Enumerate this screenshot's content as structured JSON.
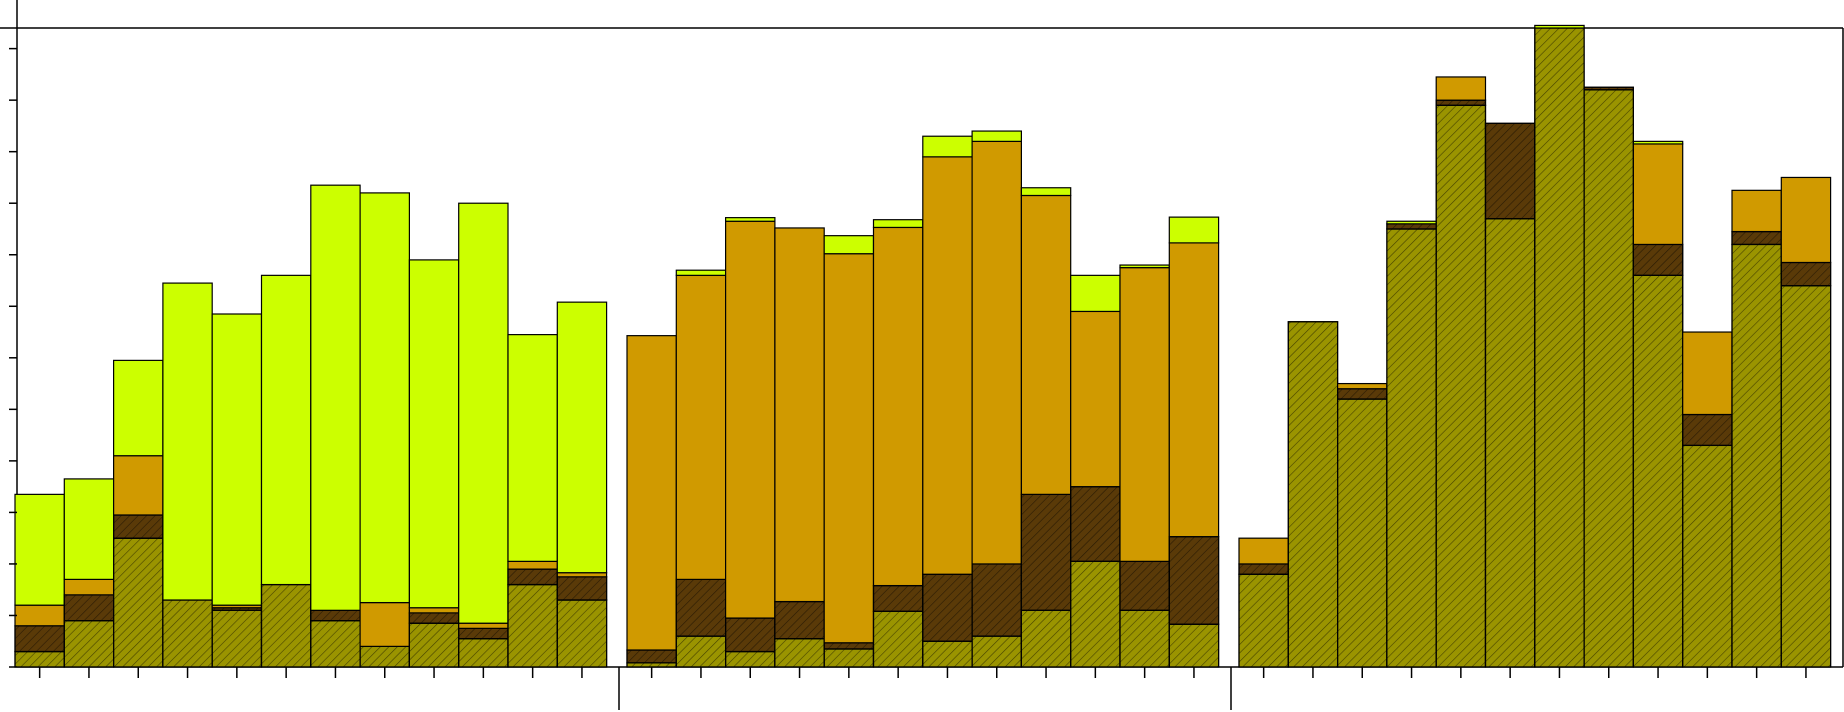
{
  "chart_data": {
    "type": "bar",
    "stacked": true,
    "title": "",
    "xlabel": "",
    "ylabel": "",
    "ylim": [
      0,
      12.4
    ],
    "grid": false,
    "legend": "none",
    "groups": [
      {
        "categories": 12
      },
      {
        "categories": 12
      },
      {
        "categories": 12
      }
    ],
    "series": [
      {
        "color": "#9a9400",
        "pattern": "hatch",
        "values": [
          0.3,
          0.9,
          2.5,
          1.3,
          1.1,
          1.6,
          0.9,
          0.4,
          0.85,
          0.55,
          1.6,
          1.3,
          0.08,
          0.6,
          0.3,
          0.55,
          0.35,
          1.08,
          0.5,
          0.6,
          1.1,
          2.05,
          1.1,
          0.83,
          1.8,
          6.7,
          5.2,
          8.5,
          10.9,
          8.7,
          12.4,
          11.2,
          7.6,
          4.3,
          8.2,
          7.4
        ]
      },
      {
        "color": "#5a3a08",
        "pattern": "hatch",
        "values": [
          0.5,
          0.5,
          0.45,
          0,
          0.05,
          0,
          0.2,
          0,
          0.2,
          0.2,
          0.3,
          0.45,
          0.25,
          1.1,
          0.65,
          0.72,
          0.12,
          0.5,
          1.3,
          1.4,
          2.25,
          1.45,
          0.95,
          1.7,
          0.2,
          0,
          0.2,
          0.1,
          0.1,
          1.85,
          0,
          0.05,
          0.6,
          0.6,
          0.25,
          0.45
        ]
      },
      {
        "color": "#d09a00",
        "pattern": "none",
        "values": [
          0.4,
          0.3,
          1.15,
          0,
          0.05,
          0,
          0,
          0.85,
          0.1,
          0.1,
          0.15,
          0.08,
          6.1,
          5.9,
          7.7,
          7.25,
          7.55,
          6.95,
          8.1,
          8.2,
          5.8,
          3.4,
          5.7,
          5.7,
          0.5,
          0,
          0.1,
          0,
          0.45,
          0,
          0,
          0,
          1.95,
          1.6,
          0.8,
          1.65
        ]
      },
      {
        "color": "#ccff00",
        "pattern": "none",
        "values": [
          2.15,
          1.95,
          1.85,
          6.15,
          5.65,
          6.0,
          8.25,
          7.95,
          6.75,
          8.15,
          4.4,
          5.25,
          0,
          0.1,
          0.07,
          0,
          0.35,
          0.15,
          0.4,
          0.2,
          0.15,
          0.7,
          0.05,
          0.5,
          0,
          0,
          0,
          0.05,
          0,
          0,
          0.05,
          0,
          0.05,
          0,
          0,
          0
        ]
      }
    ]
  }
}
